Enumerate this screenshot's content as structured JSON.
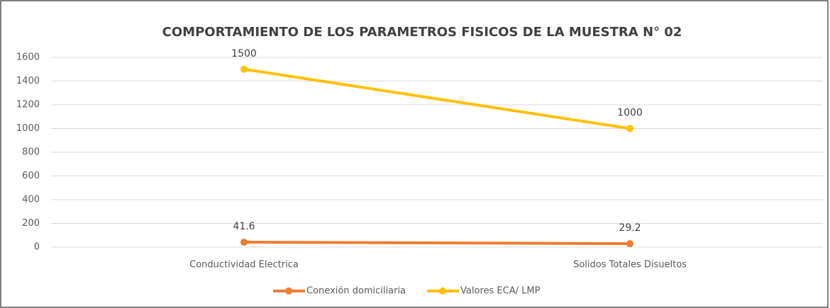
{
  "chart_data": {
    "type": "line",
    "title": "COMPORTAMIENTO DE LOS PARAMETROS FISICOS DE LA MUESTRA N° 02",
    "categories": [
      "Conductividad Electrica",
      "Solidos Totales Disueltos"
    ],
    "series": [
      {
        "name": "Conexión domiciliaria",
        "color": "#ed7d31",
        "values": [
          41.6,
          29.2
        ]
      },
      {
        "name": "Valores ECA/ LMP",
        "color": "#ffc000",
        "values": [
          1500,
          1000
        ]
      }
    ],
    "ylim": [
      0,
      1600
    ],
    "yticks": [
      0,
      200,
      400,
      600,
      800,
      1000,
      1200,
      1400,
      1600
    ],
    "grid": true,
    "legend": "bottom"
  }
}
